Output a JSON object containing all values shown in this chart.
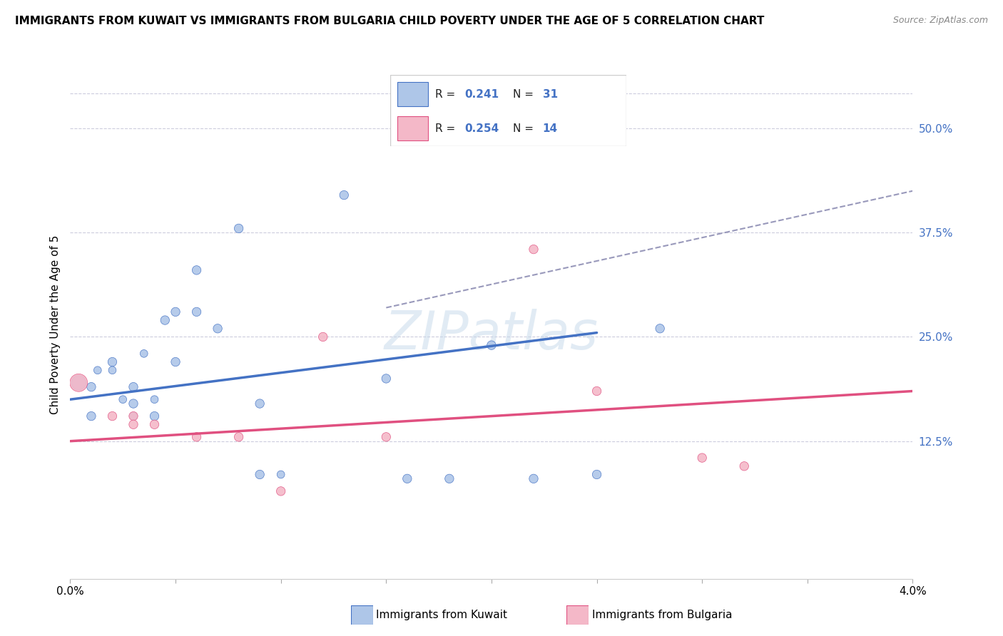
{
  "title": "IMMIGRANTS FROM KUWAIT VS IMMIGRANTS FROM BULGARIA CHILD POVERTY UNDER THE AGE OF 5 CORRELATION CHART",
  "source": "Source: ZipAtlas.com",
  "ylabel": "Child Poverty Under the Age of 5",
  "ylabel_right_ticks": [
    "50.0%",
    "37.5%",
    "25.0%",
    "12.5%"
  ],
  "ylabel_right_vals": [
    0.5,
    0.375,
    0.25,
    0.125
  ],
  "xmin": 0.0,
  "xmax": 0.04,
  "ymin": -0.04,
  "ymax": 0.57,
  "legend_r_kuwait": "0.241",
  "legend_n_kuwait": "31",
  "legend_r_bulgaria": "0.254",
  "legend_n_bulgaria": "14",
  "color_kuwait": "#aec6e8",
  "color_bulgaria": "#f4b8c8",
  "line_color_kuwait": "#4472C4",
  "line_color_bulgaria": "#e05080",
  "line_color_dashed": "#9999bb",
  "watermark": "ZIPatlas",
  "kuwait_x": [
    0.0004,
    0.001,
    0.0013,
    0.002,
    0.002,
    0.0025,
    0.003,
    0.003,
    0.003,
    0.0035,
    0.004,
    0.004,
    0.0045,
    0.005,
    0.005,
    0.006,
    0.006,
    0.007,
    0.008,
    0.009,
    0.009,
    0.01,
    0.013,
    0.015,
    0.016,
    0.018,
    0.02,
    0.022,
    0.025,
    0.028,
    0.001
  ],
  "kuwait_y": [
    0.195,
    0.19,
    0.21,
    0.22,
    0.21,
    0.175,
    0.17,
    0.155,
    0.19,
    0.23,
    0.155,
    0.175,
    0.27,
    0.22,
    0.28,
    0.28,
    0.33,
    0.26,
    0.38,
    0.17,
    0.085,
    0.085,
    0.42,
    0.2,
    0.08,
    0.08,
    0.24,
    0.08,
    0.085,
    0.26,
    0.155
  ],
  "kuwait_size": [
    220,
    80,
    60,
    80,
    60,
    60,
    80,
    60,
    80,
    60,
    80,
    60,
    80,
    80,
    80,
    80,
    80,
    80,
    80,
    80,
    80,
    60,
    80,
    80,
    80,
    80,
    80,
    80,
    80,
    80,
    80
  ],
  "bulgaria_x": [
    0.0004,
    0.002,
    0.003,
    0.003,
    0.004,
    0.006,
    0.008,
    0.01,
    0.012,
    0.015,
    0.022,
    0.025,
    0.03,
    0.032
  ],
  "bulgaria_y": [
    0.195,
    0.155,
    0.155,
    0.145,
    0.145,
    0.13,
    0.13,
    0.065,
    0.25,
    0.13,
    0.355,
    0.185,
    0.105,
    0.095
  ],
  "bulgaria_size": [
    320,
    80,
    80,
    80,
    80,
    80,
    80,
    80,
    80,
    80,
    80,
    80,
    80,
    80
  ],
  "kuwait_trend_x": [
    0.0,
    0.025
  ],
  "kuwait_trend_y": [
    0.175,
    0.255
  ],
  "bulgaria_trend_x": [
    0.0,
    0.04
  ],
  "bulgaria_trend_y": [
    0.125,
    0.185
  ],
  "dashed_trend_x": [
    0.015,
    0.04
  ],
  "dashed_trend_y": [
    0.285,
    0.425
  ],
  "x_tick_positions": [
    0.0,
    0.005,
    0.01,
    0.015,
    0.02,
    0.025,
    0.03,
    0.035,
    0.04
  ],
  "bottom_legend_kuwait": "Immigrants from Kuwait",
  "bottom_legend_bulgaria": "Immigrants from Bulgaria"
}
